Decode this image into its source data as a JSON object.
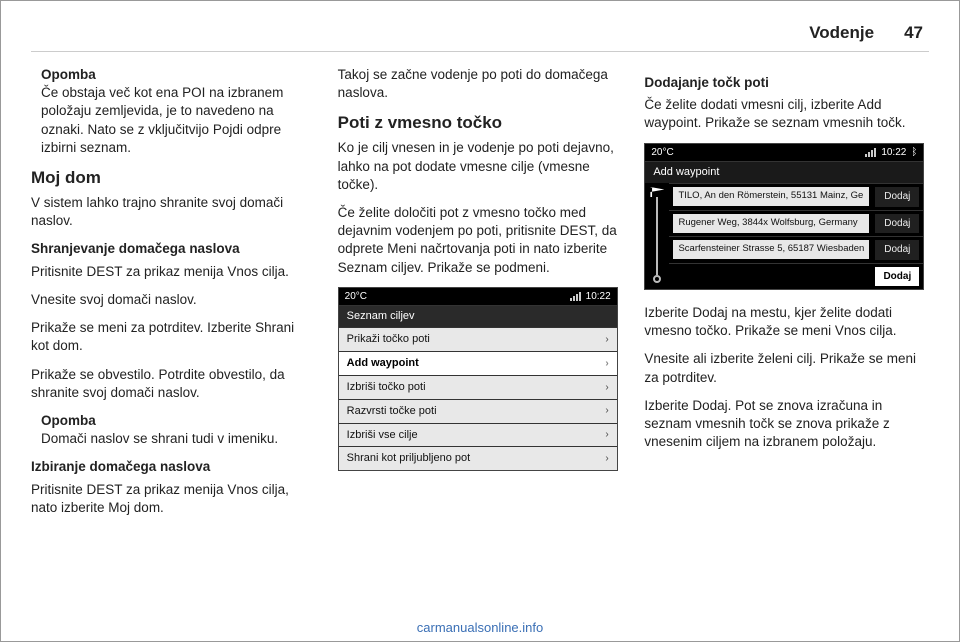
{
  "header": {
    "title": "Vodenje",
    "page": "47"
  },
  "footer": {
    "url": "carmanualsonline.info"
  },
  "col1": {
    "note1_title": "Opomba",
    "note1_body": "Če obstaja več kot ena POI na izbranem položaju zemljevida, je to navedeno na oznaki. Nato se z vključitvijo Pojdi odpre izbirni seznam.",
    "h2": "Moj dom",
    "p1": "V sistem lahko trajno shranite svoj domači naslov.",
    "h3a": "Shranjevanje domačega naslova",
    "p2": "Pritisnite DEST za prikaz menija Vnos cilja.",
    "p3": "Vnesite svoj domači naslov.",
    "p4": "Prikaže se meni za potrditev. Izberite Shrani kot dom.",
    "p5": "Prikaže se obvestilo. Potrdite obvestilo, da shranite svoj domači naslov.",
    "note2_title": "Opomba",
    "note2_body": "Domači naslov se shrani tudi v imeniku.",
    "h3b": "Izbiranje domačega naslova",
    "p6": "Pritisnite DEST za prikaz menija Vnos cilja, nato izberite Moj dom."
  },
  "col2": {
    "p1": "Takoj se začne vodenje po poti do domačega naslova.",
    "h2": "Poti z vmesno točko",
    "p2": "Ko je cilj vnesen in je vodenje po poti dejavno, lahko na pot dodate vmesne cilje (vmesne točke).",
    "p3": "Če želite določiti pot z vmesno točko med dejavnim vodenjem po poti, pritisnite DEST, da odprete Meni načrtovanja poti in nato izberite Seznam ciljev. Prikaže se podmeni."
  },
  "col3": {
    "h3": "Dodajanje točk poti",
    "p1": "Če želite dodati vmesni cilj, izberite Add waypoint. Prikaže se seznam vmesnih točk.",
    "p2": "Izberite Dodaj na mestu, kjer želite dodati vmesno točko. Prikaže se meni Vnos cilja.",
    "p3": "Vnesite ali izberite želeni cilj. Prikaže se meni za potrditev.",
    "p4": "Izberite Dodaj. Pot se znova izračuna in seznam vmesnih točk se znova prikaže z vnesenim ciljem na izbranem položaju."
  },
  "screen1": {
    "temp": "20°C",
    "time": "10:22",
    "title": "Seznam ciljev",
    "items": [
      {
        "label": "Prikaži točko poti",
        "hl": false
      },
      {
        "label": "Add waypoint",
        "hl": true
      },
      {
        "label": "Izbriši točko poti",
        "hl": false
      },
      {
        "label": "Razvrsti točke poti",
        "hl": false
      },
      {
        "label": "Izbriši vse cilje",
        "hl": false
      },
      {
        "label": "Shrani kot priljubljeno pot",
        "hl": false
      }
    ],
    "colors": {
      "bg": "#000000",
      "row": "#e8e8e8",
      "hl": "#ffffff",
      "text": "#111111"
    }
  },
  "screen2": {
    "temp": "20°C",
    "time": "10:22",
    "title": "Add waypoint",
    "btn_label": "Dodaj",
    "rows": [
      {
        "addr": "TILO, An den Römerstein, 55131 Mainz, Ge",
        "hl": false
      },
      {
        "addr": "Rugener Weg, 3844x Wolfsburg, Germany",
        "hl": false
      },
      {
        "addr": "Scarfensteiner Strasse 5, 65187 Wiesbaden",
        "hl": false
      },
      {
        "addr": "",
        "hl": true
      }
    ],
    "colors": {
      "bg": "#000000",
      "addr_bg": "#e8e8e8",
      "btn_bg": "#202020",
      "btn_hl": "#ffffff"
    }
  }
}
